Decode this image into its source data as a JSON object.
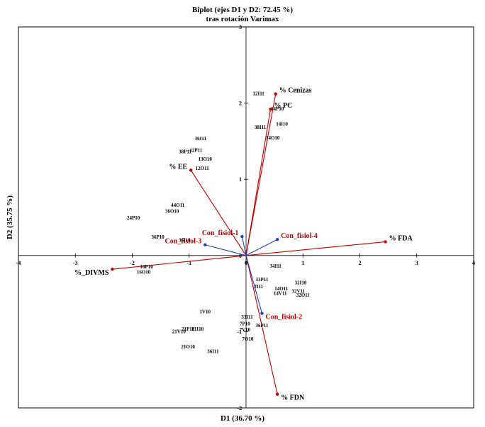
{
  "chart_data": {
    "type": "scatter",
    "title": "Biplot (ejes D1 y D2: 72.45 %)",
    "subtitle": "tras rotación Varimax",
    "xlabel": "D1 (36.70 %)",
    "ylabel": "D2 (35.75 %)",
    "xlim": [
      -4,
      4
    ],
    "ylim": [
      -2,
      3
    ],
    "xticks": [
      -4,
      -3,
      -2,
      -1,
      0,
      1,
      2,
      3,
      4
    ],
    "yticks": [
      -2,
      -1,
      0,
      1,
      2,
      3
    ],
    "grid": false,
    "colors": {
      "variables": "#c00000",
      "supplementary": "#1f3fbf",
      "observations": "#000000"
    },
    "variables": [
      {
        "label": "% Cenizas",
        "x": 0.52,
        "y": 2.12
      },
      {
        "label": "% PC",
        "x": 0.43,
        "y": 1.92
      },
      {
        "label": "% EE",
        "x": -0.97,
        "y": 1.12
      },
      {
        "label": "% FDA",
        "x": 2.45,
        "y": 0.18
      },
      {
        "label": "% FDN",
        "x": 0.55,
        "y": -1.82
      },
      {
        "label": "%_DIVMS",
        "x": -2.35,
        "y": -0.18
      }
    ],
    "supplementary": [
      {
        "label": "Con_fisiol-1",
        "x": -0.07,
        "y": 0.25
      },
      {
        "label": "Con_fisiol-2",
        "x": 0.28,
        "y": -0.76
      },
      {
        "label": "Con_fisiol-3",
        "x": -0.72,
        "y": 0.14
      },
      {
        "label": "Con_fisiol-4",
        "x": 0.55,
        "y": 0.21
      }
    ],
    "observations": [
      {
        "label": "12I11",
        "x": 0.22,
        "y": 2.12
      },
      {
        "label": "14P10",
        "x": 0.55,
        "y": 1.92
      },
      {
        "label": "14I10",
        "x": 0.63,
        "y": 1.72
      },
      {
        "label": "38I11",
        "x": 0.25,
        "y": 1.68
      },
      {
        "label": "14O10",
        "x": 0.47,
        "y": 1.54
      },
      {
        "label": "36I11",
        "x": -0.8,
        "y": 1.53
      },
      {
        "label": "12P11",
        "x": -0.88,
        "y": 1.38
      },
      {
        "label": "38P11",
        "x": -1.07,
        "y": 1.36
      },
      {
        "label": "13O10",
        "x": -0.72,
        "y": 1.26
      },
      {
        "label": "12O11",
        "x": -0.77,
        "y": 1.14
      },
      {
        "label": "44O11",
        "x": -1.2,
        "y": 0.66
      },
      {
        "label": "36O10",
        "x": -1.3,
        "y": 0.58
      },
      {
        "label": "24P10",
        "x": -1.98,
        "y": 0.49
      },
      {
        "label": "36P10",
        "x": -1.55,
        "y": 0.24
      },
      {
        "label": "36I10",
        "x": -1.08,
        "y": 0.2
      },
      {
        "label": "16P10",
        "x": -1.75,
        "y": -0.15
      },
      {
        "label": "16O10",
        "x": -1.8,
        "y": -0.22
      },
      {
        "label": "34I11",
        "x": 0.52,
        "y": -0.14
      },
      {
        "label": "33P11",
        "x": 0.28,
        "y": -0.32
      },
      {
        "label": "2I11",
        "x": 0.22,
        "y": -0.41
      },
      {
        "label": "14O11",
        "x": 0.62,
        "y": -0.44
      },
      {
        "label": "14V11",
        "x": 0.6,
        "y": -0.5
      },
      {
        "label": "32I10",
        "x": 0.96,
        "y": -0.36
      },
      {
        "label": "32V11",
        "x": 0.92,
        "y": -0.47
      },
      {
        "label": "32O11",
        "x": 1.0,
        "y": -0.52
      },
      {
        "label": "1V10",
        "x": -0.72,
        "y": -0.74
      },
      {
        "label": "33I11",
        "x": 0.02,
        "y": -0.81
      },
      {
        "label": "7P10",
        "x": -0.02,
        "y": -0.9
      },
      {
        "label": "36P11",
        "x": 0.28,
        "y": -0.92
      },
      {
        "label": "7V10",
        "x": -0.02,
        "y": -0.98
      },
      {
        "label": "7O10",
        "x": 0.03,
        "y": -1.1
      },
      {
        "label": "21P10",
        "x": -1.02,
        "y": -0.97
      },
      {
        "label": "21I10",
        "x": -0.85,
        "y": -0.97
      },
      {
        "label": "21V10",
        "x": -1.18,
        "y": -1.0
      },
      {
        "label": "21O10",
        "x": -1.02,
        "y": -1.2
      },
      {
        "label": "36I11",
        "x": -0.58,
        "y": -1.26
      }
    ]
  }
}
